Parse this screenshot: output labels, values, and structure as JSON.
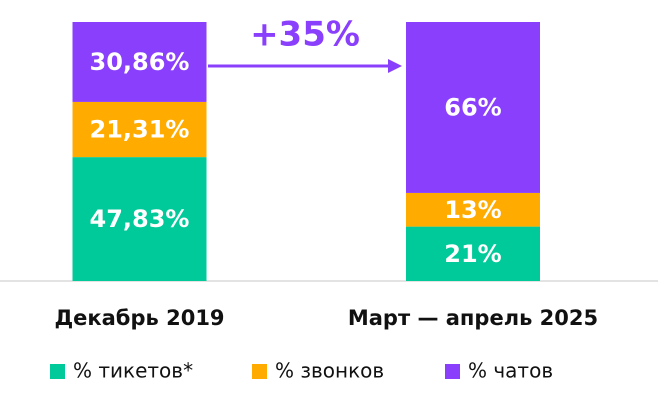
{
  "chart_data": {
    "type": "stacked_bar",
    "annotation": "+35%",
    "categories": [
      "Декабрь 2019",
      "Март — апрель 2025"
    ],
    "series": [
      {
        "name": "% тикетов*",
        "color": "#00c99a",
        "values": [
          47.83,
          21
        ],
        "value_labels": [
          "47,83%",
          "21%"
        ]
      },
      {
        "name": "% звонков",
        "color": "#ffab00",
        "values": [
          21.31,
          13
        ],
        "value_labels": [
          "21,31%",
          "13%"
        ]
      },
      {
        "name": "% чатов",
        "color": "#8a3ffc",
        "values": [
          30.86,
          66
        ],
        "value_labels": [
          "30,86%",
          "66%"
        ]
      }
    ]
  }
}
